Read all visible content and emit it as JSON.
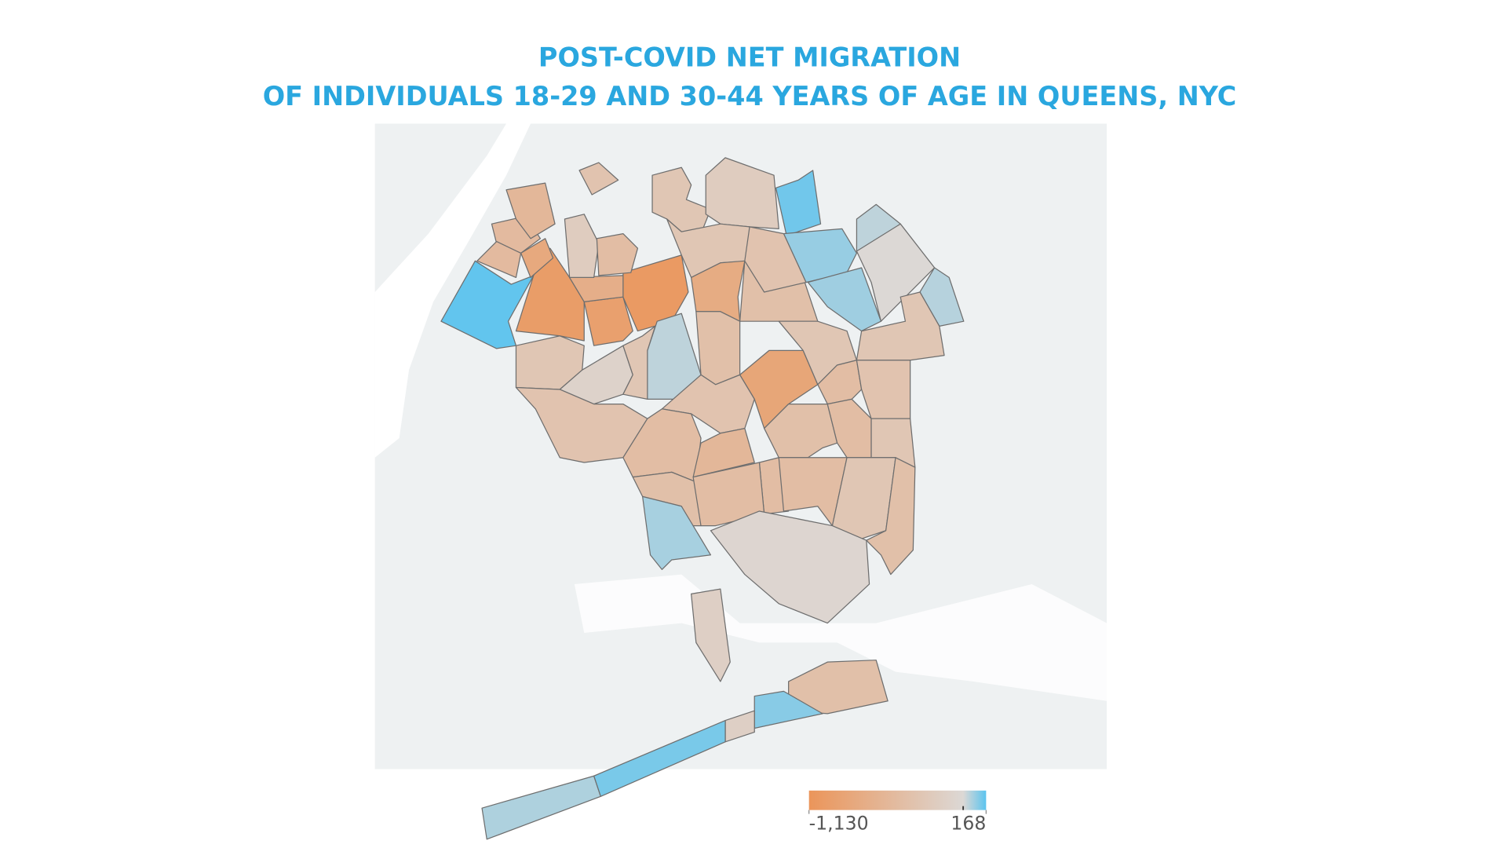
{
  "chart_data": {
    "type": "choropleth",
    "title": "POST-COVID NET MIGRATION",
    "subtitle": "OF INDIVIDUALS 18-29 AND 30-44 YEARS OF AGE IN QUEENS, NYC",
    "values": [
      160,
      -1000,
      -950,
      -1050,
      -700,
      -500,
      -550,
      -500,
      -800,
      -200,
      -450,
      -350,
      -300,
      -200,
      140,
      90,
      40,
      0,
      50,
      80,
      -300,
      -750,
      -400,
      -350,
      40,
      -300,
      -100,
      -350,
      -300,
      -400,
      -850,
      -300,
      -300,
      -450,
      -350,
      -350,
      -450,
      -550,
      -450,
      -400,
      -450,
      -300,
      -450,
      -300,
      -400,
      -400,
      -450,
      70,
      -50,
      -150,
      -400,
      110,
      -150,
      60,
      130
    ],
    "colorscale": {
      "lim": [
        -1130,
        168
      ],
      "ticks": [
        {
          "value": -1130,
          "label": "-1,130"
        },
        168
      ],
      "colors": [
        "#eb955a",
        "#dcd8d5",
        "#5cc4ef"
      ]
    }
  }
}
